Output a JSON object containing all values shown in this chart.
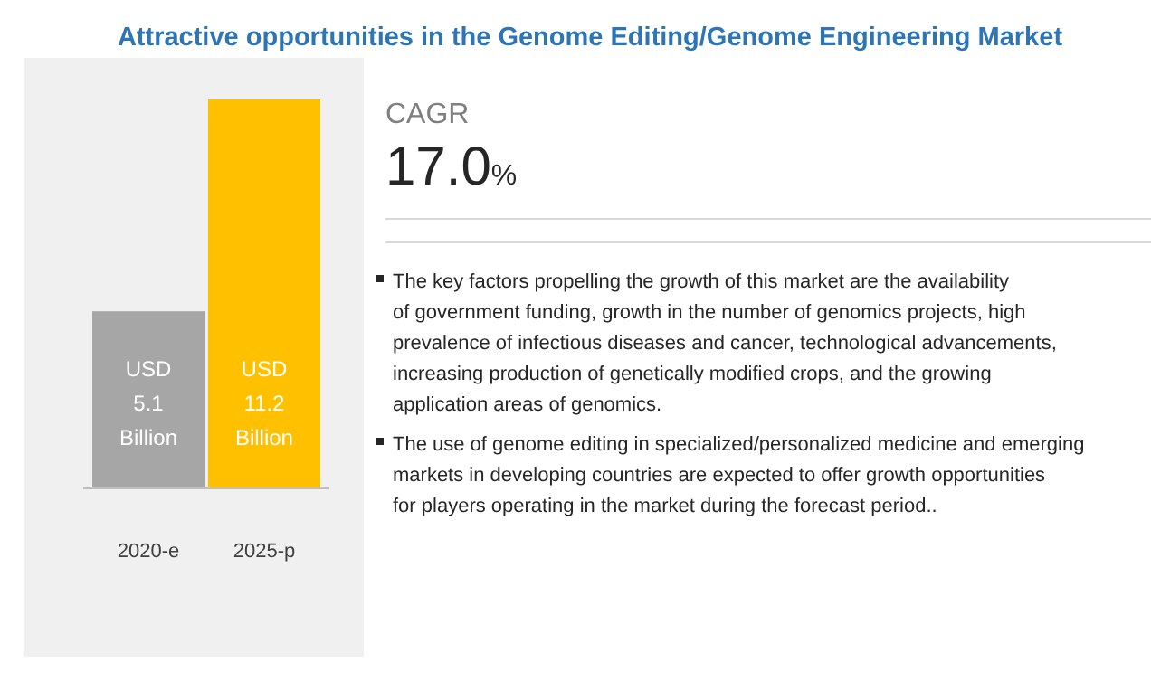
{
  "chart_data": {
    "type": "bar",
    "title": "Attractive opportunities in the Genome Editing/Genome Engineering Market",
    "categories": [
      "2020-e",
      "2025-p"
    ],
    "values": [
      5.1,
      11.2
    ],
    "colors": [
      "#a6a6a6",
      "#ffc000"
    ],
    "data_labels": true,
    "value_labels": [
      "USD 5.1 Billion",
      "USD 11.2 Billion"
    ],
    "annotations": [
      "CAGR",
      "17.0%",
      "The key factors propelling the growth of this market are the availability of government funding, growth in the number of genomics projects, high prevalence of infectious diseases and cancer, technological advancements, increasing production of genetically modified crops, and the growing application areas of genomics.",
      "The use of genome editing in specialized/personalized medicine and emerging markets in developing countries are expected to offer growth opportunities for players operating in the market during the forecast period.."
    ]
  }
}
